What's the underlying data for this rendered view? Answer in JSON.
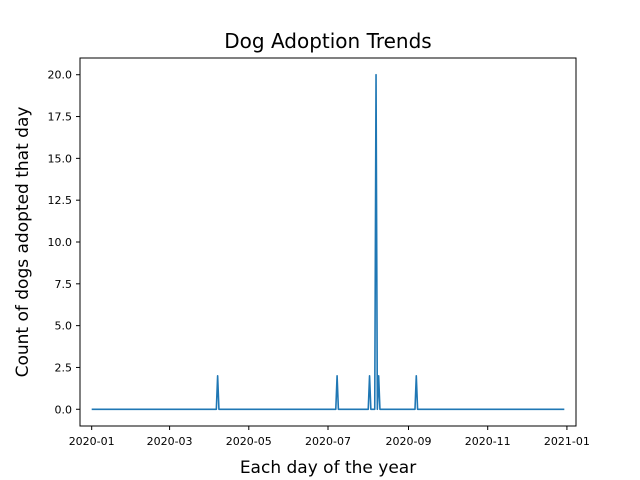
{
  "chart_data": {
    "type": "line",
    "title": "Dog Adoption Trends",
    "xlabel": "Each day of the year",
    "ylabel": "Count of dogs adopted that day",
    "x_axis_type": "date",
    "xlim": [
      "2019-12-23",
      "2021-01-08"
    ],
    "ylim": [
      -1,
      21
    ],
    "x_ticks": [
      "2020-01",
      "2020-03",
      "2020-05",
      "2020-07",
      "2020-09",
      "2020-11",
      "2021-01"
    ],
    "y_ticks": [
      0.0,
      2.5,
      5.0,
      7.5,
      10.0,
      12.5,
      15.0,
      17.5,
      20.0
    ],
    "y_tick_labels": [
      "0.0",
      "2.5",
      "5.0",
      "7.5",
      "10.0",
      "12.5",
      "15.0",
      "17.5",
      "20.0"
    ],
    "grid": false,
    "line_color": "#1f77b4",
    "series": [
      {
        "x": [
          "2020-01-01",
          "2020-04-06",
          "2020-04-07",
          "2020-04-08",
          "2020-07-07",
          "2020-07-08",
          "2020-07-09",
          "2020-08-01",
          "2020-08-02",
          "2020-08-03",
          "2020-08-06",
          "2020-08-07",
          "2020-08-08",
          "2020-08-09",
          "2020-08-10",
          "2020-08-11",
          "2020-09-06",
          "2020-09-07",
          "2020-09-08",
          "2020-12-30"
        ],
        "y": [
          0,
          0,
          2,
          0,
          0,
          2,
          0,
          0,
          2,
          0,
          0,
          20,
          0,
          2,
          0,
          0,
          0,
          2,
          0,
          0
        ]
      }
    ]
  }
}
